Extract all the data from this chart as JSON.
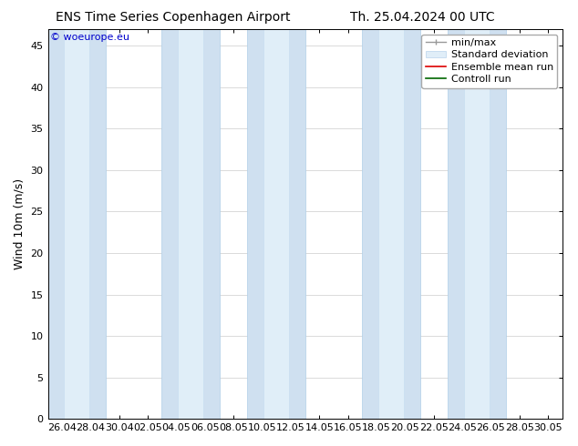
{
  "title_left": "ENS Time Series Copenhagen Airport",
  "title_right": "Th. 25.04.2024 00 UTC",
  "ylabel": "Wind 10m (m/s)",
  "watermark": "© woeurope.eu",
  "ymin": 0,
  "ymax": 47,
  "yticks": [
    0,
    5,
    10,
    15,
    20,
    25,
    30,
    35,
    40,
    45
  ],
  "xtick_labels": [
    "26.04",
    "28.04",
    "30.04",
    "02.05",
    "04.05",
    "06.05",
    "08.05",
    "10.05",
    "12.05",
    "14.05",
    "16.05",
    "18.05",
    "20.05",
    "22.05",
    "24.05",
    "26.05",
    "28.05",
    "30.05"
  ],
  "band_outer_color": "#cfe0f0",
  "band_outer_edge": "#b0cfe8",
  "band_inner_color": "#e0eef8",
  "band_inner_edge": "#c8ddf0",
  "ensemble_mean_color": "#dd0000",
  "control_run_color": "#006600",
  "minmax_color": "#999999",
  "bg_color": "#ffffff",
  "legend_labels": [
    "min/max",
    "Standard deviation",
    "Ensemble mean run",
    "Controll run"
  ],
  "title_fontsize": 10,
  "ylabel_fontsize": 9,
  "tick_fontsize": 8,
  "legend_fontsize": 8,
  "watermark_fontsize": 8,
  "band_centers_idx": [
    0.5,
    4.5,
    7.5,
    11.5,
    14.5
  ],
  "band_outer_hw": 1.02,
  "band_inner_hw": 0.45,
  "n_ticks": 18
}
